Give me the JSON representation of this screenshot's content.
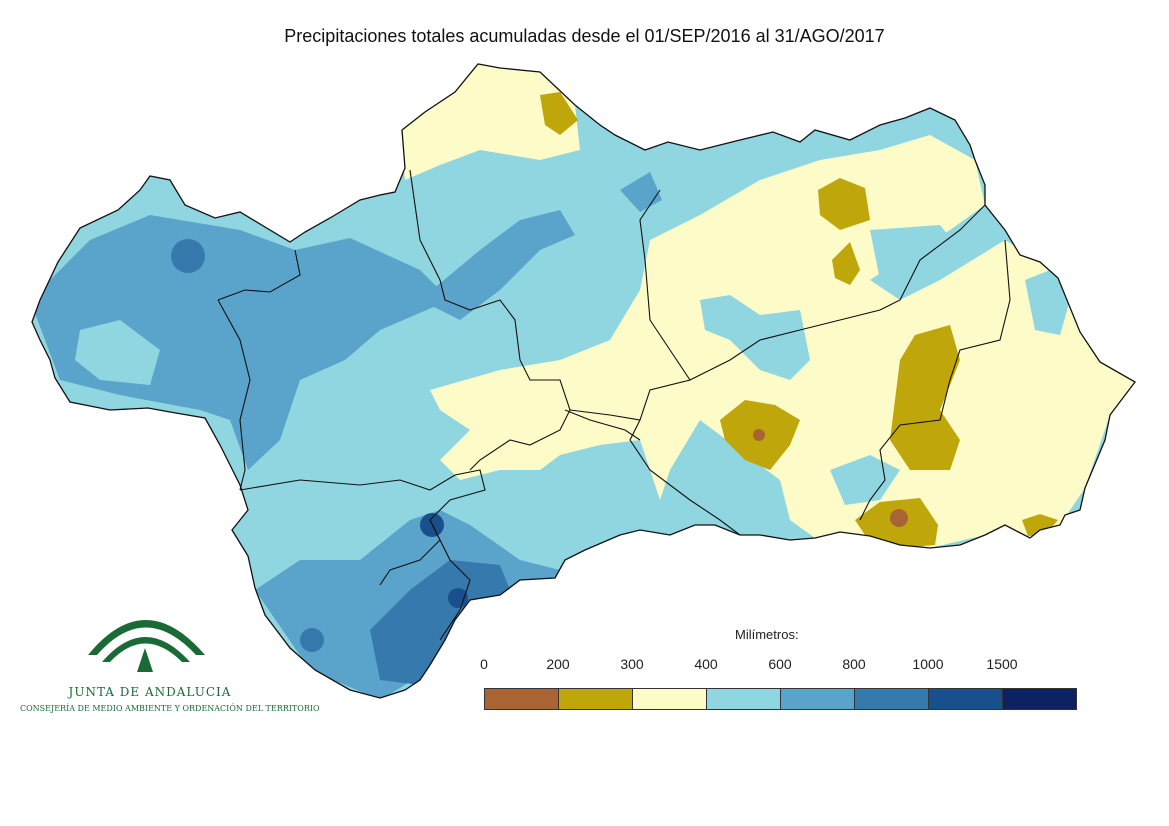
{
  "title": "Precipitaciones totales acumuladas desde el 01/SEP/2016 al 31/AGO/2017",
  "legend": {
    "title": "Milímetros:",
    "labels": [
      "0",
      "200",
      "300",
      "400",
      "600",
      "800",
      "1000",
      "1500"
    ],
    "colors": [
      "#a86435",
      "#bfa60a",
      "#fdfbc8",
      "#8fd6e0",
      "#5aa3cb",
      "#3579ad",
      "#1a4f8d",
      "#0d2361"
    ]
  },
  "logo": {
    "name": "JUNTA DE ANDALUCIA",
    "subtitle": "CONSEJERÍA DE MEDIO AMBIENTE Y ORDENACIÓN DEL TERRITORIO",
    "color": "#1a6a36"
  }
}
